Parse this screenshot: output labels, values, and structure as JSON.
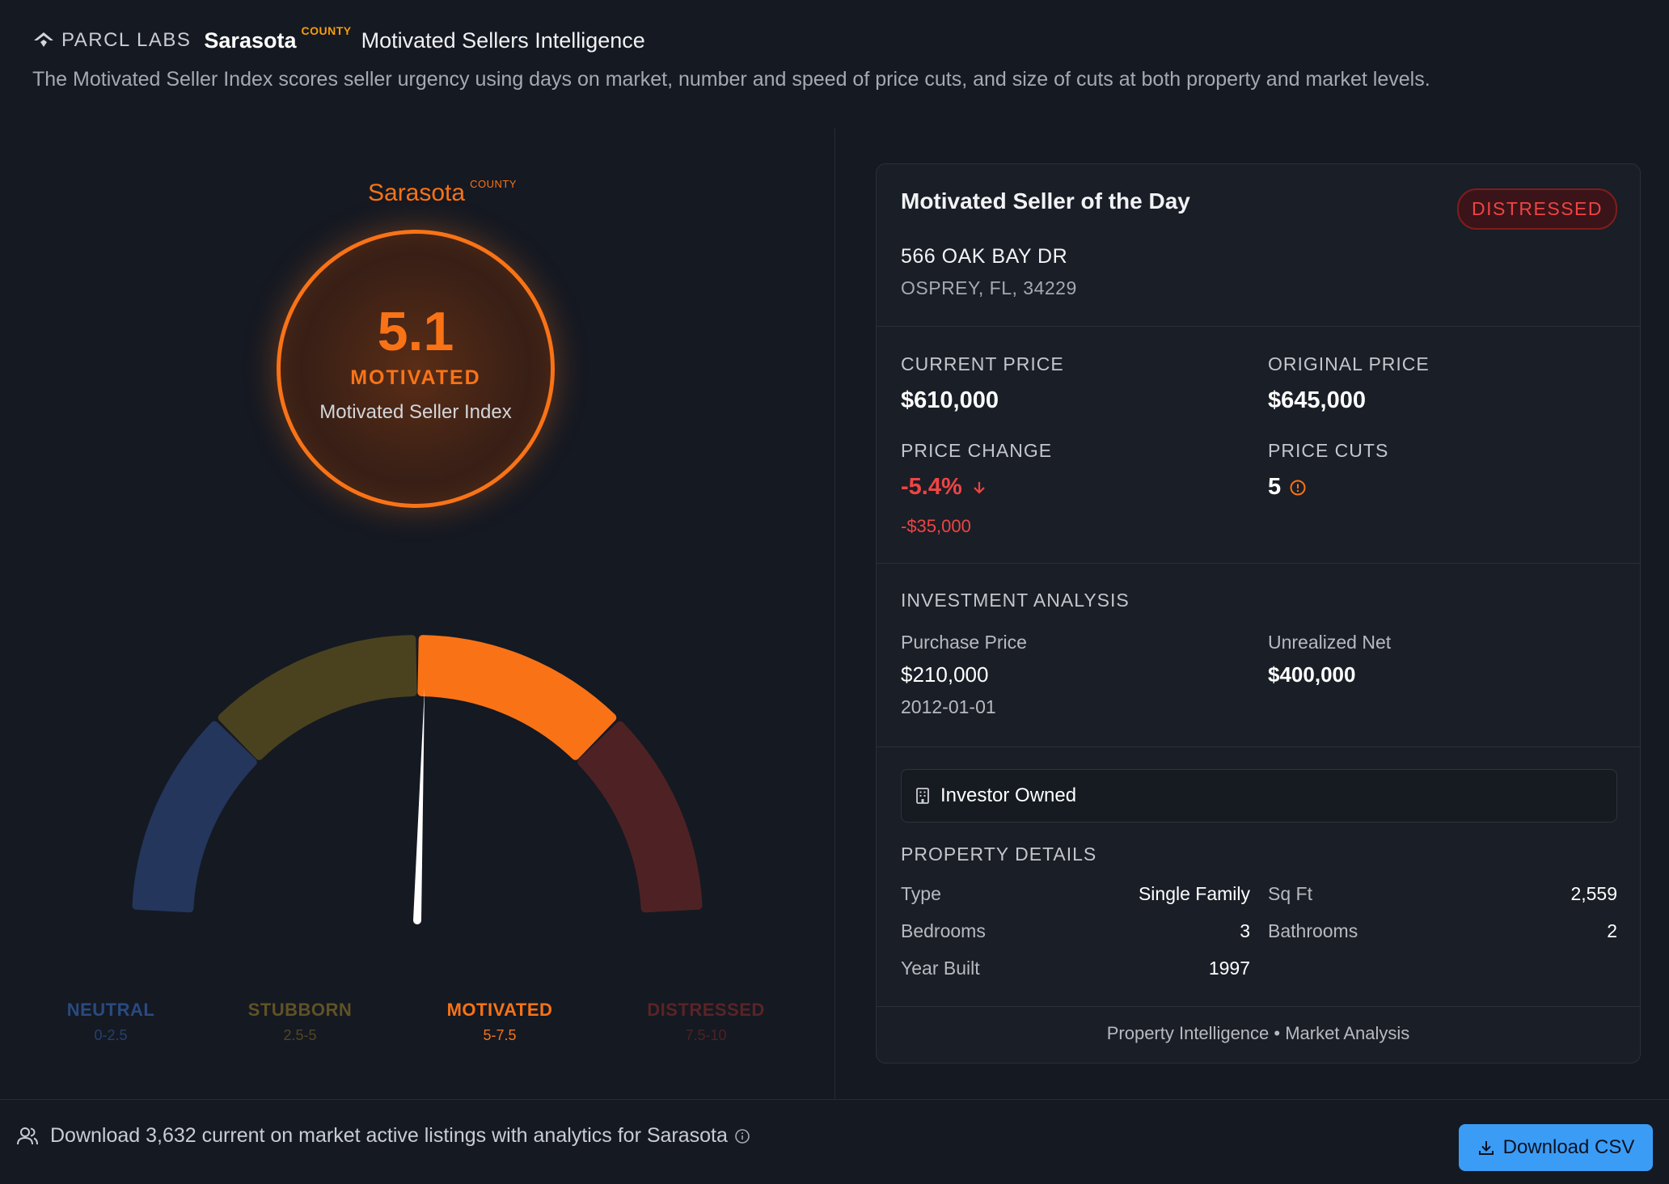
{
  "header": {
    "logo_text": "PARCL LABS",
    "region": "Sarasota",
    "region_type": "COUNTY",
    "app_title": "Motivated Sellers Intelligence",
    "description": "The Motivated Seller Index scores seller urgency using days on market, number and speed of price cuts, and size of cuts at both property and market levels."
  },
  "gauge": {
    "region": "Sarasota",
    "region_type": "COUNTY",
    "score": "5.1",
    "score_value": 5.1,
    "state": "MOTIVATED",
    "label": "Motivated Seller Index",
    "scale_min": 0,
    "scale_max": 10,
    "bands": [
      {
        "name": "NEUTRAL",
        "range": "0-2.5",
        "color": "#24365c",
        "label_color": "#2a4a80"
      },
      {
        "name": "STUBBORN",
        "range": "2.5-5",
        "color": "#4a421f",
        "label_color": "#5f5226"
      },
      {
        "name": "MOTIVATED",
        "range": "5-7.5",
        "color": "#f97316",
        "label_color": "#f97316"
      },
      {
        "name": "DISTRESSED",
        "range": "7.5-10",
        "color": "#4e2224",
        "label_color": "#5a2426"
      }
    ]
  },
  "card": {
    "title": "Motivated Seller of the Day",
    "badge": "DISTRESSED",
    "address_line1": "566 OAK BAY DR",
    "address_line2": "OSPREY, FL, 34229",
    "current_price_label": "CURRENT PRICE",
    "current_price": "$610,000",
    "original_price_label": "ORIGINAL PRICE",
    "original_price": "$645,000",
    "price_change_label": "PRICE CHANGE",
    "price_change": "-5.4%",
    "price_change_amount": "-$35,000",
    "price_cuts_label": "PRICE CUTS",
    "price_cuts": "5",
    "investment_label": "INVESTMENT ANALYSIS",
    "purchase_price_label": "Purchase Price",
    "purchase_price": "$210,000",
    "purchase_date": "2012-01-01",
    "unrealized_net_label": "Unrealized Net",
    "unrealized_net": "$400,000",
    "owner_type": "Investor Owned",
    "details_label": "PROPERTY DETAILS",
    "details": {
      "type_label": "Type",
      "type": "Single Family",
      "sqft_label": "Sq Ft",
      "sqft": "2,559",
      "bedrooms_label": "Bedrooms",
      "bedrooms": "3",
      "bathrooms_label": "Bathrooms",
      "bathrooms": "2",
      "year_built_label": "Year Built",
      "year_built": "1997"
    },
    "footer": "Property Intelligence • Market Analysis"
  },
  "bottom": {
    "text": "Download 3,632 current on market active listings with analytics for Sarasota",
    "download_label": "Download CSV"
  },
  "colors": {
    "accent": "#f97316",
    "negative": "#ef4444",
    "positive": "#22c55e",
    "button": "#3b9cf6"
  }
}
